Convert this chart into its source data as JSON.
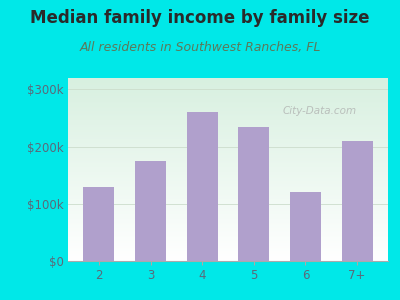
{
  "title": "Median family income by family size",
  "subtitle": "All residents in Southwest Ranches, FL",
  "categories": [
    "2",
    "3",
    "4",
    "5",
    "6",
    "7+"
  ],
  "values": [
    130000,
    175000,
    260000,
    235000,
    120000,
    210000
  ],
  "bar_color": "#b0a0cc",
  "ylim": [
    0,
    320000
  ],
  "yticks": [
    0,
    100000,
    200000,
    300000
  ],
  "ytick_labels": [
    "$0",
    "$100k",
    "$200k",
    "$300k"
  ],
  "background_outer": "#00e8e8",
  "title_color": "#2a2a2a",
  "subtitle_color": "#5a7a5a",
  "tick_color": "#5a6a7a",
  "watermark": "City-Data.com",
  "title_fontsize": 12,
  "subtitle_fontsize": 9,
  "tick_fontsize": 8.5,
  "grad_top": "#d8f0e0",
  "grad_bottom": "#ffffff"
}
